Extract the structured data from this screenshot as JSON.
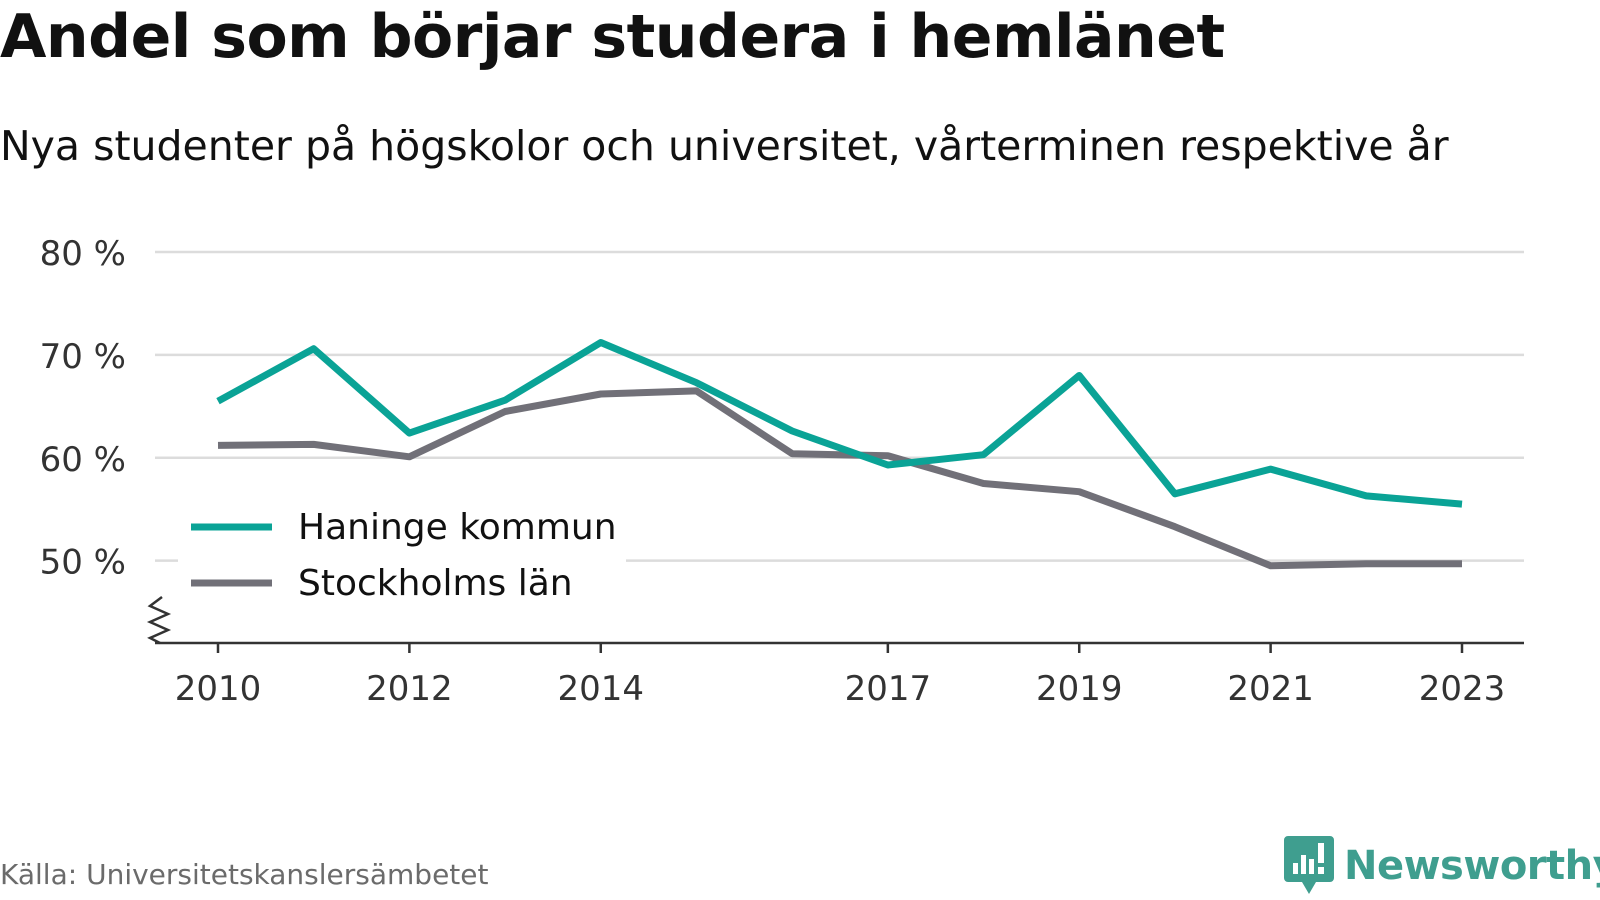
{
  "chart_data": {
    "type": "line",
    "title": "Andel som börjar studera i hemlänet",
    "subtitle": "Nya studenter på högskolor och universitet, vårterminen respektive år",
    "x": [
      2010,
      2011,
      2012,
      2013,
      2014,
      2015,
      2016,
      2017,
      2018,
      2019,
      2020,
      2021,
      2022,
      2023
    ],
    "x_ticks": [
      "2010",
      "2012",
      "2014",
      "2017",
      "2019",
      "2021",
      "2023"
    ],
    "y_ticks": [
      "50 %",
      "60 %",
      "70 %",
      "80 %"
    ],
    "ylim": [
      42,
      80
    ],
    "grid": true,
    "axis_break": true,
    "legend_position": "bottom-left",
    "series": [
      {
        "name": "Haninge kommun",
        "color": "#0aa396",
        "values": [
          65.5,
          70.6,
          62.4,
          65.6,
          71.2,
          67.3,
          62.6,
          59.3,
          60.3,
          68.0,
          56.5,
          58.9,
          56.3,
          55.5
        ]
      },
      {
        "name": "Stockholms län",
        "color": "#717078",
        "values": [
          61.2,
          61.3,
          60.1,
          64.5,
          66.2,
          66.5,
          60.4,
          60.2,
          57.5,
          56.7,
          53.3,
          49.5,
          49.7,
          49.7
        ]
      }
    ]
  },
  "source_text": "Källa: Universitetskanslersämbetet",
  "brand": {
    "name": "Newsworthy",
    "color": "#3f9e8f",
    "icon": "newsworthy-logo-icon"
  }
}
